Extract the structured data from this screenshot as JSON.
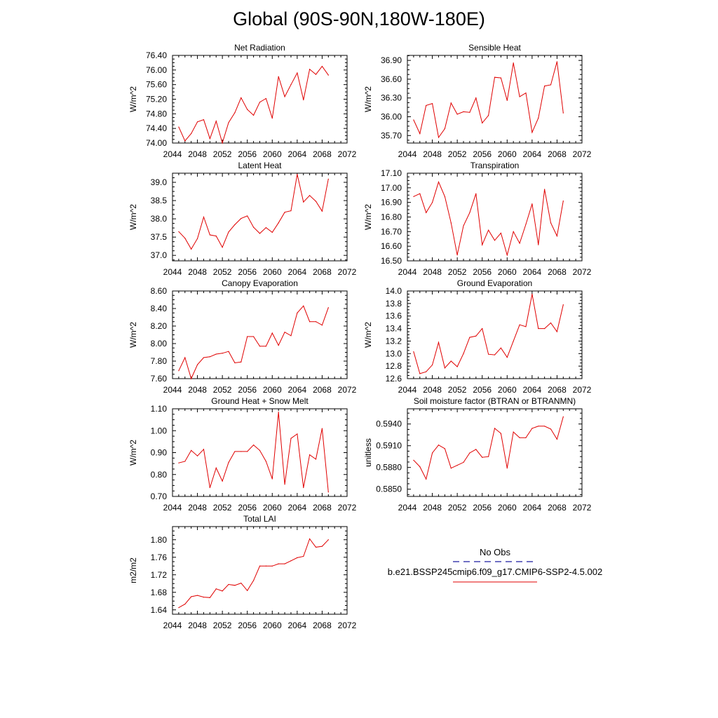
{
  "title": "Global (90S-90N,180W-180E)",
  "colors": {
    "series": "#e00000",
    "obs": "#1a1aa0",
    "axis": "#000000"
  },
  "legend": {
    "obs_label": "No Obs",
    "model_label": "b.e21.BSSP245cmip6.f09_g17.CMIP6-SSP2-4.5.002"
  },
  "chart_data": [
    {
      "type": "line",
      "title": "Net Radiation",
      "ylabel": "W/m^2",
      "xlabel": "",
      "xlim": [
        2044,
        2072
      ],
      "xticks": [
        2044,
        2048,
        2052,
        2056,
        2060,
        2064,
        2068,
        2072
      ],
      "ylim": [
        74.0,
        76.4
      ],
      "yticks": [
        "74.00",
        "74.40",
        "74.80",
        "75.20",
        "75.60",
        "76.00",
        "76.40"
      ],
      "x": [
        2045,
        2046,
        2047,
        2048,
        2049,
        2050,
        2051,
        2052,
        2053,
        2054,
        2055,
        2056,
        2057,
        2058,
        2059,
        2060,
        2061,
        2062,
        2063,
        2064,
        2065,
        2066,
        2067,
        2068,
        2069
      ],
      "values": [
        74.44,
        74.06,
        74.26,
        74.58,
        74.64,
        74.12,
        74.6,
        74.0,
        74.56,
        74.83,
        75.24,
        74.92,
        74.76,
        75.12,
        75.22,
        74.68,
        75.82,
        75.27,
        75.6,
        75.92,
        75.18,
        76.02,
        75.88,
        76.1,
        75.86
      ]
    },
    {
      "type": "line",
      "title": "Sensible Heat",
      "ylabel": "W/m^2",
      "xlabel": "",
      "xlim": [
        2044,
        2072
      ],
      "xticks": [
        2044,
        2048,
        2052,
        2056,
        2060,
        2064,
        2068,
        2072
      ],
      "ylim": [
        35.58,
        36.98
      ],
      "yticks": [
        "35.70",
        "36.00",
        "36.30",
        "36.60",
        "36.90"
      ],
      "x": [
        2045,
        2046,
        2047,
        2048,
        2049,
        2050,
        2051,
        2052,
        2053,
        2054,
        2055,
        2056,
        2057,
        2058,
        2059,
        2060,
        2061,
        2062,
        2063,
        2064,
        2065,
        2066,
        2067,
        2068,
        2069
      ],
      "values": [
        35.95,
        35.73,
        36.18,
        36.21,
        35.67,
        35.81,
        36.22,
        36.04,
        36.08,
        36.07,
        36.3,
        35.9,
        36.02,
        36.63,
        36.62,
        36.26,
        36.86,
        36.32,
        36.38,
        35.75,
        35.98,
        36.49,
        36.51,
        36.88,
        36.06
      ]
    },
    {
      "type": "line",
      "title": "Latent Heat",
      "ylabel": "W/m^2",
      "xlabel": "",
      "xlim": [
        2044,
        2072
      ],
      "xticks": [
        2044,
        2048,
        2052,
        2056,
        2060,
        2064,
        2068,
        2072
      ],
      "ylim": [
        36.85,
        39.25
      ],
      "yticks": [
        "37.0",
        "37.5",
        "38.0",
        "38.5",
        "39.0"
      ],
      "x": [
        2045,
        2046,
        2047,
        2048,
        2049,
        2050,
        2051,
        2052,
        2053,
        2054,
        2055,
        2056,
        2057,
        2058,
        2059,
        2060,
        2061,
        2062,
        2063,
        2064,
        2065,
        2066,
        2067,
        2068,
        2069
      ],
      "values": [
        37.65,
        37.47,
        37.17,
        37.46,
        38.05,
        37.56,
        37.53,
        37.22,
        37.64,
        37.84,
        38.01,
        38.08,
        37.77,
        37.6,
        37.76,
        37.63,
        37.89,
        38.18,
        38.22,
        39.22,
        38.46,
        38.64,
        38.48,
        38.21,
        39.09
      ]
    },
    {
      "type": "line",
      "title": "Transpiration",
      "ylabel": "W/m^2",
      "xlabel": "",
      "xlim": [
        2044,
        2072
      ],
      "xticks": [
        2044,
        2048,
        2052,
        2056,
        2060,
        2064,
        2068,
        2072
      ],
      "ylim": [
        16.5,
        17.1
      ],
      "yticks": [
        "16.50",
        "16.60",
        "16.70",
        "16.80",
        "16.90",
        "17.00",
        "17.10"
      ],
      "x": [
        2045,
        2046,
        2047,
        2048,
        2049,
        2050,
        2051,
        2052,
        2053,
        2054,
        2055,
        2056,
        2057,
        2058,
        2059,
        2060,
        2061,
        2062,
        2063,
        2064,
        2065,
        2066,
        2067,
        2068,
        2069
      ],
      "values": [
        16.94,
        16.96,
        16.83,
        16.9,
        17.04,
        16.94,
        16.76,
        16.54,
        16.74,
        16.83,
        16.96,
        16.61,
        16.71,
        16.64,
        16.69,
        16.54,
        16.7,
        16.62,
        16.75,
        16.89,
        16.61,
        16.99,
        16.76,
        16.67,
        16.91
      ]
    },
    {
      "type": "line",
      "title": "Canopy Evaporation",
      "ylabel": "W/m^2",
      "xlabel": "",
      "xlim": [
        2044,
        2072
      ],
      "xticks": [
        2044,
        2048,
        2052,
        2056,
        2060,
        2064,
        2068,
        2072
      ],
      "ylim": [
        7.6,
        8.6
      ],
      "yticks": [
        "7.60",
        "7.80",
        "8.00",
        "8.20",
        "8.40",
        "8.60"
      ],
      "x": [
        2045,
        2046,
        2047,
        2048,
        2049,
        2050,
        2051,
        2052,
        2053,
        2054,
        2055,
        2056,
        2057,
        2058,
        2059,
        2060,
        2061,
        2062,
        2063,
        2064,
        2065,
        2066,
        2067,
        2068,
        2069
      ],
      "values": [
        7.69,
        7.84,
        7.6,
        7.76,
        7.84,
        7.85,
        7.88,
        7.89,
        7.91,
        7.78,
        7.79,
        8.08,
        8.08,
        7.97,
        7.97,
        8.12,
        7.98,
        8.13,
        8.09,
        8.35,
        8.43,
        8.25,
        8.25,
        8.21,
        8.41
      ]
    },
    {
      "type": "line",
      "title": "Ground Evaporation",
      "ylabel": "W/m^2",
      "xlabel": "",
      "xlim": [
        2044,
        2072
      ],
      "xticks": [
        2044,
        2048,
        2052,
        2056,
        2060,
        2064,
        2068,
        2072
      ],
      "ylim": [
        12.6,
        14.0
      ],
      "yticks": [
        "12.6",
        "12.8",
        "13.0",
        "13.2",
        "13.4",
        "13.6",
        "13.8",
        "14.0"
      ],
      "x": [
        2045,
        2046,
        2047,
        2048,
        2049,
        2050,
        2051,
        2052,
        2053,
        2054,
        2055,
        2056,
        2057,
        2058,
        2059,
        2060,
        2061,
        2062,
        2063,
        2064,
        2065,
        2066,
        2067,
        2068,
        2069
      ],
      "values": [
        13.03,
        12.68,
        12.71,
        12.82,
        13.18,
        12.77,
        12.88,
        12.79,
        13.0,
        13.26,
        13.28,
        13.4,
        12.99,
        12.98,
        13.09,
        12.94,
        13.2,
        13.46,
        13.43,
        13.95,
        13.4,
        13.4,
        13.49,
        13.35,
        13.78
      ]
    },
    {
      "type": "line",
      "title": "Ground Heat + Snow Melt",
      "ylabel": "W/m^2",
      "xlabel": "",
      "xlim": [
        2044,
        2072
      ],
      "xticks": [
        2044,
        2048,
        2052,
        2056,
        2060,
        2064,
        2068,
        2072
      ],
      "ylim": [
        0.7,
        1.1
      ],
      "yticks": [
        "0.70",
        "0.80",
        "0.90",
        "1.00",
        "1.10"
      ],
      "x": [
        2045,
        2046,
        2047,
        2048,
        2049,
        2050,
        2051,
        2052,
        2053,
        2054,
        2055,
        2056,
        2057,
        2058,
        2059,
        2060,
        2061,
        2062,
        2063,
        2064,
        2065,
        2066,
        2067,
        2068,
        2069
      ],
      "values": [
        0.853,
        0.86,
        0.91,
        0.885,
        0.915,
        0.74,
        0.83,
        0.77,
        0.855,
        0.905,
        0.905,
        0.905,
        0.935,
        0.91,
        0.86,
        0.78,
        1.085,
        0.755,
        0.965,
        0.985,
        0.74,
        0.89,
        0.87,
        1.01,
        0.72
      ]
    },
    {
      "type": "line",
      "title": "Soil moisture factor (BTRAN or BTRANMN)",
      "ylabel": "unitless",
      "xlabel": "",
      "xlim": [
        2044,
        2072
      ],
      "xticks": [
        2044,
        2048,
        2052,
        2056,
        2060,
        2064,
        2068,
        2072
      ],
      "ylim": [
        0.584,
        0.5961
      ],
      "yticks": [
        "0.5850",
        "0.5880",
        "0.5910",
        "0.5940"
      ],
      "x": [
        2045,
        2046,
        2047,
        2048,
        2049,
        2050,
        2051,
        2052,
        2053,
        2054,
        2055,
        2056,
        2057,
        2058,
        2059,
        2060,
        2061,
        2062,
        2063,
        2064,
        2065,
        2066,
        2067,
        2068,
        2069
      ],
      "values": [
        0.589,
        0.5881,
        0.5864,
        0.59,
        0.5911,
        0.5906,
        0.5879,
        0.5883,
        0.5887,
        0.59,
        0.5905,
        0.5894,
        0.5895,
        0.5934,
        0.5927,
        0.5879,
        0.5929,
        0.5921,
        0.5921,
        0.5934,
        0.5937,
        0.5937,
        0.5933,
        0.5919,
        0.595
      ]
    },
    {
      "type": "line",
      "title": "Total LAI",
      "ylabel": "m2/m2",
      "xlabel": "",
      "xlim": [
        2044,
        2072
      ],
      "xticks": [
        2044,
        2048,
        2052,
        2056,
        2060,
        2064,
        2068,
        2072
      ],
      "ylim": [
        1.63,
        1.83
      ],
      "yticks": [
        "1.64",
        "1.68",
        "1.72",
        "1.76",
        "1.80"
      ],
      "x": [
        2045,
        2046,
        2047,
        2048,
        2049,
        2050,
        2051,
        2052,
        2053,
        2054,
        2055,
        2056,
        2057,
        2058,
        2059,
        2060,
        2061,
        2062,
        2063,
        2064,
        2065,
        2066,
        2067,
        2068,
        2069
      ],
      "values": [
        1.645,
        1.653,
        1.67,
        1.673,
        1.669,
        1.668,
        1.688,
        1.683,
        1.698,
        1.696,
        1.701,
        1.684,
        1.707,
        1.74,
        1.74,
        1.74,
        1.745,
        1.745,
        1.752,
        1.759,
        1.762,
        1.802,
        1.783,
        1.785,
        1.8
      ]
    }
  ]
}
